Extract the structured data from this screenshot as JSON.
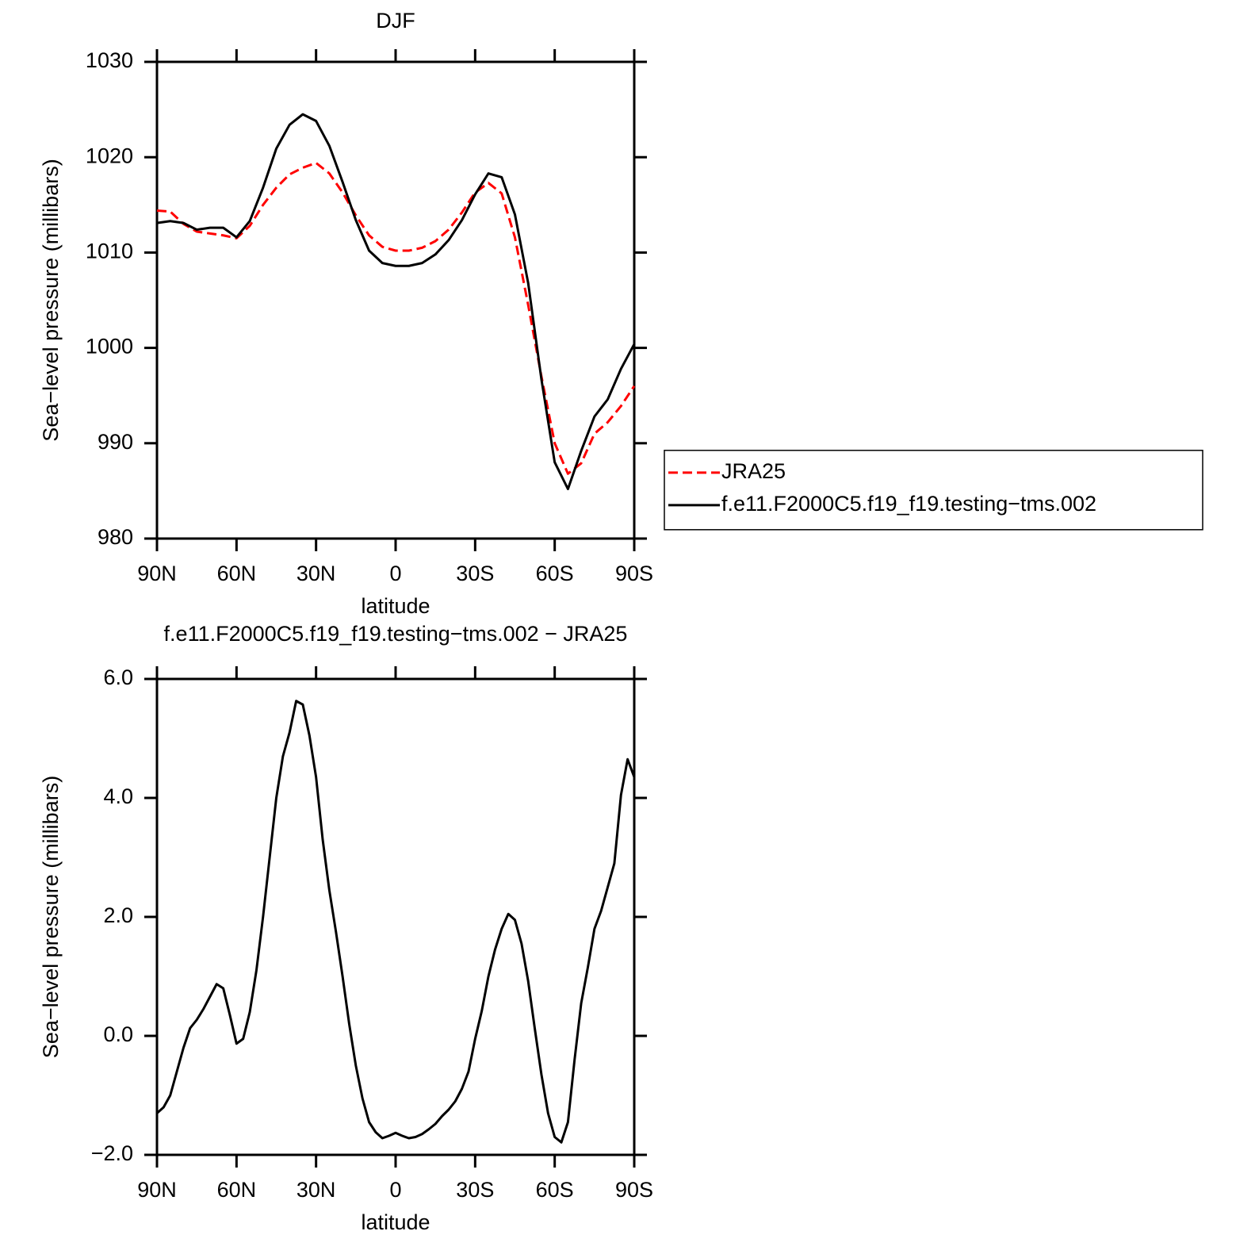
{
  "chart_data": [
    {
      "type": "line",
      "title": "DJF",
      "xlabel": "latitude",
      "ylabel": "Sea−level pressure (millibars)",
      "x": [
        90,
        85,
        80,
        75,
        70,
        65,
        60,
        55,
        50,
        45,
        40,
        35,
        30,
        25,
        20,
        15,
        10,
        5,
        0,
        -5,
        -10,
        -15,
        -20,
        -25,
        -30,
        -35,
        -40,
        -45,
        -50,
        -55,
        -60,
        -65,
        -70,
        -75,
        -80,
        -85,
        -90
      ],
      "series": [
        {
          "name": "JRA25",
          "color": "#ff0000",
          "style": "dashed",
          "values": [
            1014.4,
            1014.3,
            1013.0,
            1012.2,
            1012.0,
            1011.8,
            1011.5,
            1012.8,
            1015.0,
            1016.8,
            1018.2,
            1018.9,
            1019.4,
            1018.3,
            1016.3,
            1013.9,
            1011.8,
            1010.6,
            1010.2,
            1010.2,
            1010.5,
            1011.2,
            1012.4,
            1014.2,
            1016.3,
            1017.3,
            1016.2,
            1011.6,
            1004.5,
            997.0,
            990.0,
            986.8,
            987.9,
            991.0,
            992.2,
            993.9,
            996.0
          ]
        },
        {
          "name": "f.e11.F2000C5.f19_f19.testing−tms.002",
          "color": "#000000",
          "style": "solid",
          "values": [
            1013.1,
            1013.3,
            1013.1,
            1012.4,
            1012.6,
            1012.6,
            1011.6,
            1013.3,
            1016.8,
            1020.9,
            1023.4,
            1024.5,
            1023.8,
            1021.2,
            1017.4,
            1013.4,
            1010.2,
            1008.9,
            1008.6,
            1008.6,
            1008.9,
            1009.8,
            1011.3,
            1013.4,
            1016.1,
            1018.3,
            1017.9,
            1014.0,
            1006.8,
            996.7,
            988.0,
            985.2,
            989.2,
            992.8,
            994.6,
            997.8,
            1000.4
          ]
        }
      ],
      "xlim": [
        90,
        -90
      ],
      "xticks": [
        {
          "value": 90,
          "label": "90N"
        },
        {
          "value": 60,
          "label": "60N"
        },
        {
          "value": 30,
          "label": "30N"
        },
        0,
        {
          "value": -30,
          "label": "30S"
        },
        {
          "value": -60,
          "label": "60S"
        },
        {
          "value": -90,
          "label": "90S"
        }
      ],
      "ylim": [
        980,
        1030
      ],
      "yticks": [
        980,
        990,
        1000,
        1010,
        1020,
        1030
      ],
      "legend": "right"
    },
    {
      "type": "line",
      "title": "f.e11.F2000C5.f19_f19.testing−tms.002 − JRA25",
      "xlabel": "latitude",
      "ylabel": "Sea−level pressure (millibars)",
      "x": [
        90,
        87.5,
        85,
        82.5,
        80,
        77.5,
        75,
        72.5,
        70,
        67.5,
        65,
        62.5,
        60,
        57.5,
        55,
        52.5,
        50,
        47.5,
        45,
        42.5,
        40,
        37.5,
        35,
        32.5,
        30,
        27.5,
        25,
        22.5,
        20,
        17.5,
        15,
        12.5,
        10,
        7.5,
        5,
        2.5,
        0,
        -2.5,
        -5,
        -7.5,
        -10,
        -12.5,
        -15,
        -17.5,
        -20,
        -22.5,
        -25,
        -27.5,
        -30,
        -32.5,
        -35,
        -37.5,
        -40,
        -42.5,
        -45,
        -47.5,
        -50,
        -52.5,
        -55,
        -57.5,
        -60,
        -62.5,
        -65,
        -67.5,
        -70,
        -72.5,
        -75,
        -77.5,
        -80,
        -82.5,
        -85,
        -87.5,
        -90
      ],
      "series": [
        {
          "color": "#000000",
          "style": "solid",
          "values": [
            -1.3,
            -1.2,
            -1.0,
            -0.6,
            -0.2,
            0.13,
            0.27,
            0.45,
            0.66,
            0.87,
            0.8,
            0.35,
            -0.13,
            -0.05,
            0.4,
            1.1,
            2.0,
            3.0,
            4.0,
            4.7,
            5.1,
            5.63,
            5.57,
            5.05,
            4.35,
            3.3,
            2.45,
            1.75,
            1.0,
            0.2,
            -0.5,
            -1.05,
            -1.45,
            -1.62,
            -1.72,
            -1.68,
            -1.63,
            -1.68,
            -1.72,
            -1.7,
            -1.65,
            -1.57,
            -1.48,
            -1.35,
            -1.24,
            -1.1,
            -0.89,
            -0.6,
            -0.05,
            0.42,
            1.0,
            1.45,
            1.8,
            2.05,
            1.95,
            1.55,
            0.92,
            0.12,
            -0.65,
            -1.3,
            -1.7,
            -1.79,
            -1.45,
            -0.4,
            0.55,
            1.15,
            1.8,
            2.1,
            2.5,
            2.9,
            4.05,
            4.65,
            4.35
          ]
        }
      ],
      "xlim": [
        90,
        -90
      ],
      "xticks": [
        {
          "value": 90,
          "label": "90N"
        },
        {
          "value": 60,
          "label": "60N"
        },
        {
          "value": 30,
          "label": "30N"
        },
        0,
        {
          "value": -30,
          "label": "30S"
        },
        {
          "value": -60,
          "label": "60S"
        },
        {
          "value": -90,
          "label": "90S"
        }
      ],
      "ylim": [
        -2,
        6
      ],
      "yticks": [
        {
          "value": -2,
          "label": "−2.0"
        },
        {
          "value": 0,
          "label": "0.0"
        },
        {
          "value": 2,
          "label": "2.0"
        },
        {
          "value": 4,
          "label": "4.0"
        },
        {
          "value": 6,
          "label": "6.0"
        }
      ]
    }
  ]
}
